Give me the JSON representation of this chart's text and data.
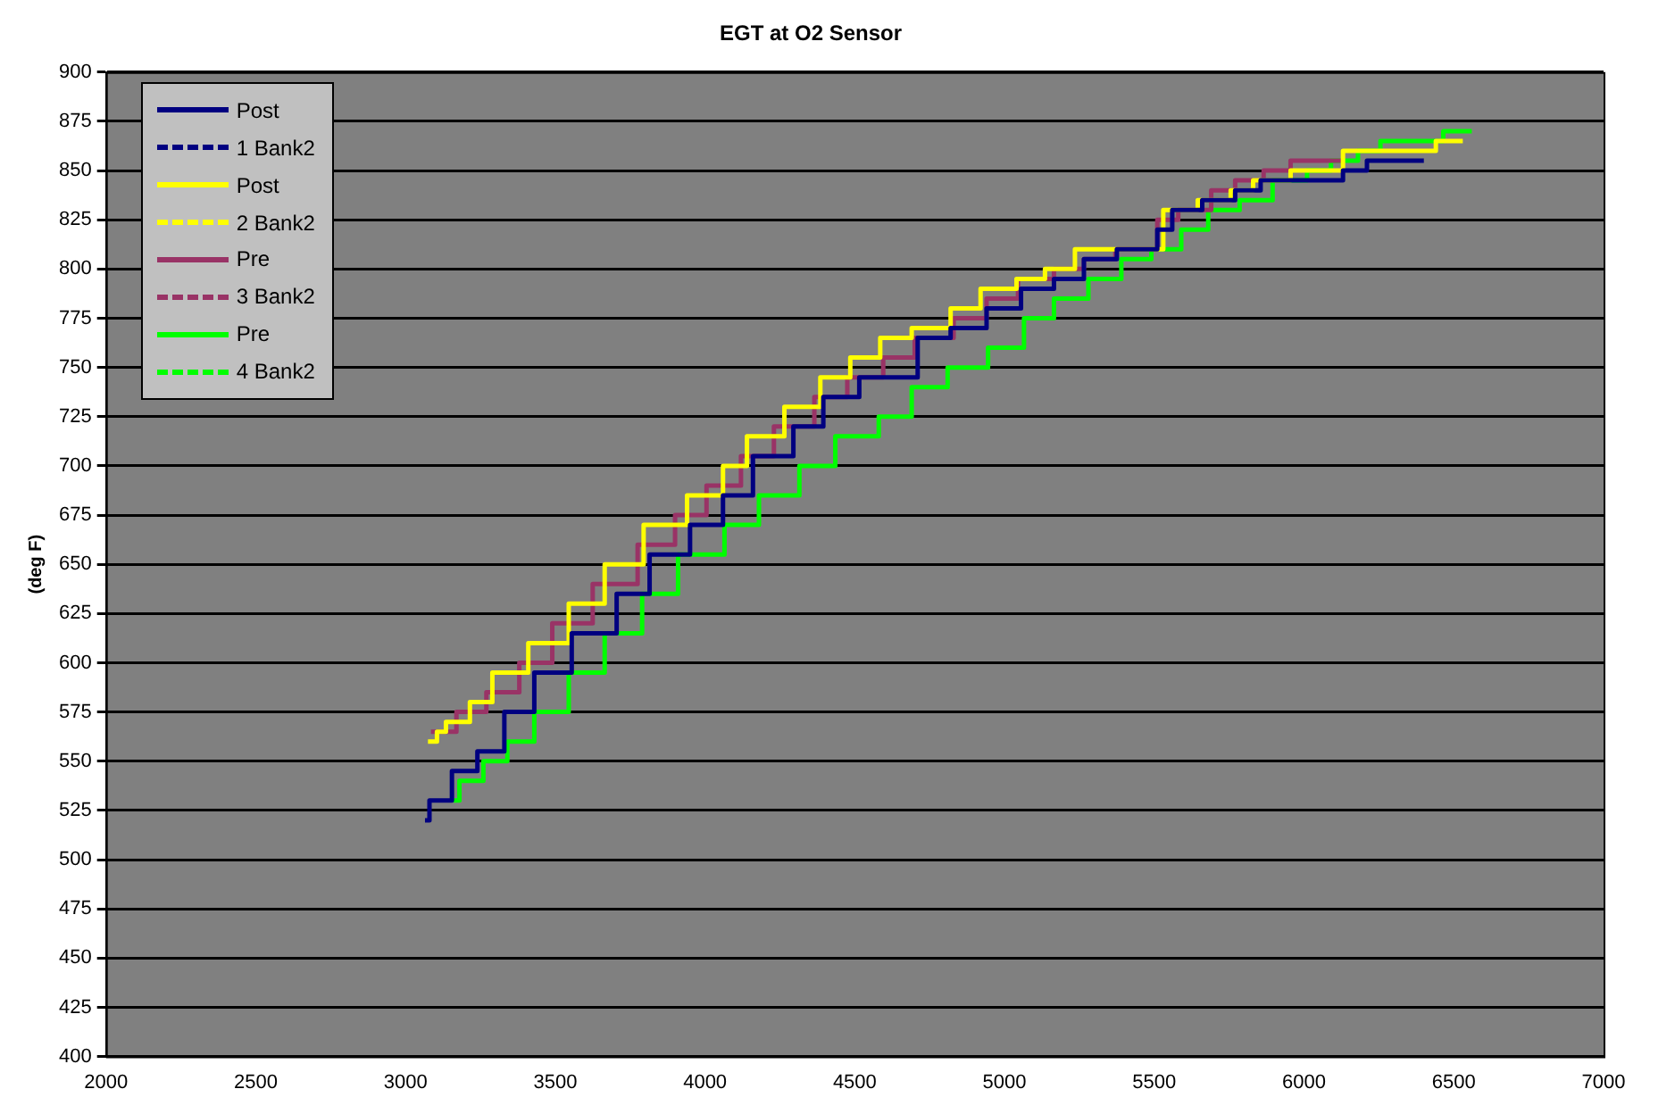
{
  "chart_data": {
    "type": "step",
    "title": "EGT at O2 Sensor",
    "ylabel": "(deg F)",
    "xlim": [
      2000,
      7000
    ],
    "xticks": [
      2000,
      2500,
      3000,
      3500,
      4000,
      4500,
      5000,
      5500,
      6000,
      6500,
      7000
    ],
    "ylim": [
      400,
      900
    ],
    "yticks": [
      400,
      425,
      450,
      475,
      500,
      525,
      550,
      575,
      600,
      625,
      650,
      675,
      700,
      725,
      750,
      775,
      800,
      825,
      850,
      875,
      900
    ],
    "grid": "y",
    "legend": "top left",
    "marker": "none",
    "series": [
      {
        "name": "Post",
        "color": "#000080",
        "line_style": "solid",
        "x": [
          3065,
          3080,
          3155,
          3240,
          3330,
          3430,
          3555,
          3705,
          3815,
          3950,
          4060,
          4160,
          4295,
          4395,
          4515,
          4710,
          4820,
          4940,
          5055,
          5165,
          5265,
          5375,
          5510,
          5560,
          5660,
          5770,
          5855,
          5925,
          6130,
          6210,
          6400
        ],
        "values": [
          520,
          530,
          545,
          555,
          575,
          595,
          615,
          635,
          655,
          670,
          685,
          705,
          720,
          735,
          745,
          765,
          770,
          780,
          790,
          795,
          805,
          810,
          820,
          830,
          835,
          840,
          845,
          845,
          850,
          855,
          855
        ]
      },
      {
        "name": "1 Bank2",
        "color": "#000080",
        "line_style": "dashed"
      },
      {
        "name": "Post",
        "color": "#ffff00",
        "line_style": "solid",
        "x": [
          3075,
          3105,
          3135,
          3215,
          3290,
          3410,
          3545,
          3665,
          3795,
          3940,
          4060,
          4140,
          4265,
          4385,
          4485,
          4585,
          4690,
          4820,
          4920,
          5040,
          5135,
          5235,
          5530,
          5645,
          5755,
          5830,
          5955,
          6130,
          6440,
          6530
        ],
        "values": [
          560,
          565,
          570,
          580,
          595,
          610,
          630,
          650,
          670,
          685,
          700,
          715,
          730,
          745,
          755,
          765,
          770,
          780,
          790,
          795,
          800,
          810,
          830,
          835,
          840,
          845,
          850,
          860,
          865,
          865
        ]
      },
      {
        "name": "2 Bank2",
        "color": "#ffff00",
        "line_style": "dashed"
      },
      {
        "name": "Pre",
        "color": "#993366",
        "line_style": "solid",
        "x": [
          3085,
          3170,
          3270,
          3380,
          3490,
          3625,
          3775,
          3900,
          4005,
          4120,
          4230,
          4365,
          4475,
          4595,
          4700,
          4830,
          4940,
          5045,
          5165,
          5265,
          5370,
          5510,
          5580,
          5690,
          5770,
          5865,
          5955,
          6135
        ],
        "values": [
          565,
          575,
          585,
          600,
          620,
          640,
          660,
          675,
          690,
          705,
          720,
          735,
          745,
          755,
          765,
          775,
          785,
          795,
          800,
          805,
          810,
          825,
          830,
          840,
          845,
          850,
          855,
          855
        ]
      },
      {
        "name": "3 Bank2",
        "color": "#993366",
        "line_style": "dashed"
      },
      {
        "name": "Pre",
        "color": "#00ff00",
        "line_style": "solid",
        "x": [
          3160,
          3180,
          3260,
          3340,
          3430,
          3545,
          3665,
          3790,
          3910,
          4065,
          4180,
          4315,
          4435,
          4580,
          4690,
          4810,
          4945,
          5065,
          5165,
          5280,
          5390,
          5490,
          5590,
          5680,
          5785,
          5895,
          6010,
          6090,
          6180,
          6255,
          6465,
          6560
        ],
        "values": [
          530,
          540,
          550,
          560,
          575,
          595,
          615,
          635,
          655,
          670,
          685,
          700,
          715,
          725,
          740,
          750,
          760,
          775,
          785,
          795,
          805,
          810,
          820,
          830,
          835,
          845,
          850,
          855,
          860,
          865,
          870,
          870
        ]
      },
      {
        "name": "4 Bank2",
        "color": "#00ff00",
        "line_style": "dashed"
      }
    ]
  }
}
